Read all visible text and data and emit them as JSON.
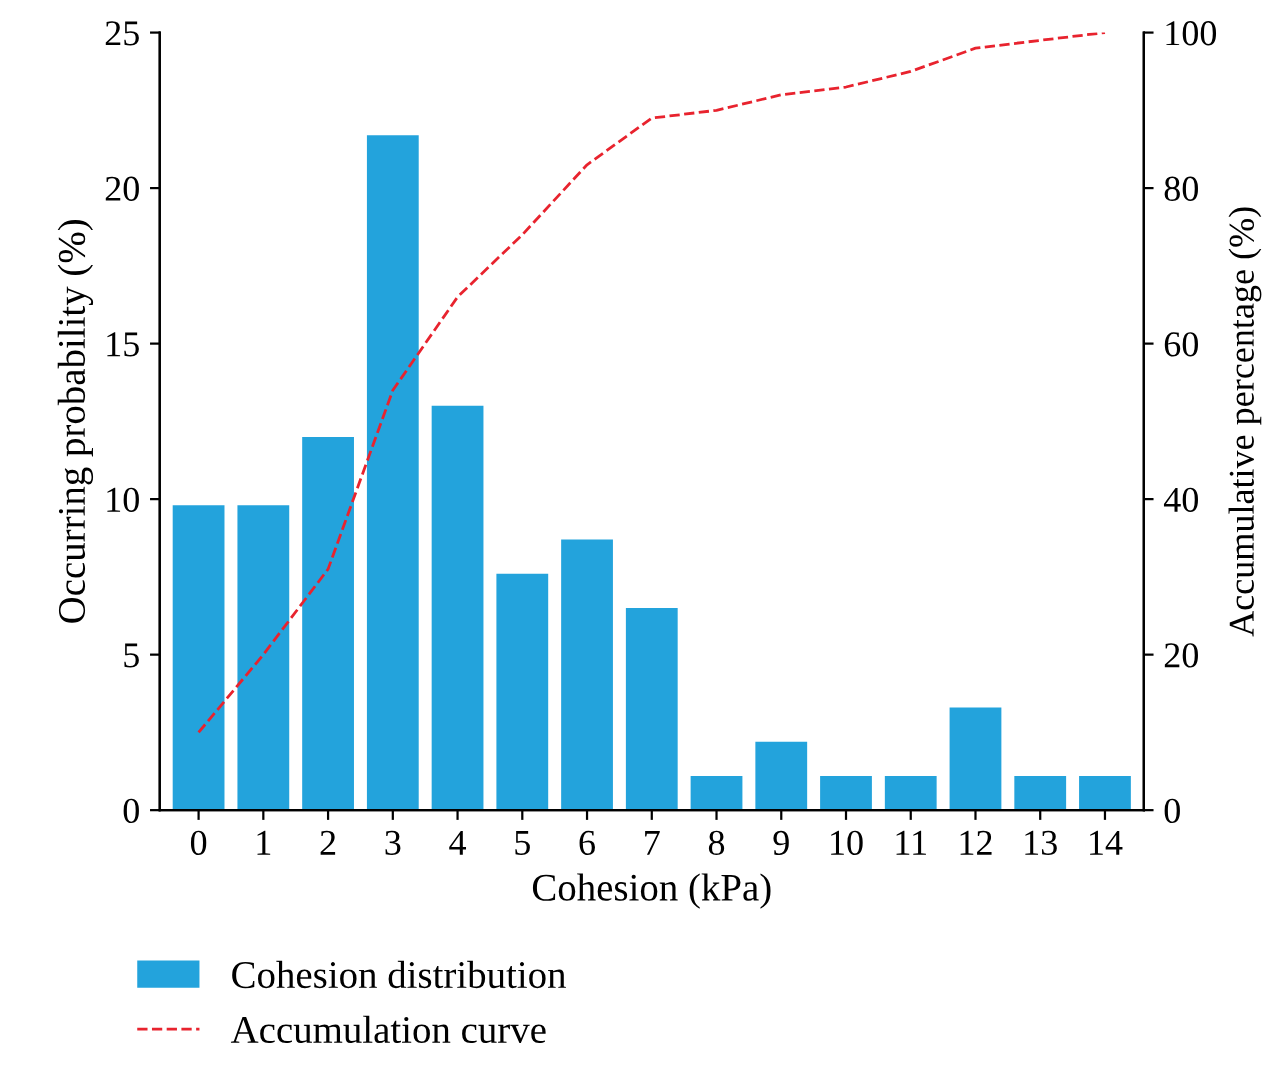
{
  "chart_data": {
    "type": "bar",
    "xlabel": "Cohesion (kPa)",
    "ylabel": "Occurring probability (%)",
    "y2label": "Accumulative percentage (%)",
    "categories": [
      "0",
      "1",
      "2",
      "3",
      "4",
      "5",
      "6",
      "7",
      "8",
      "9",
      "10",
      "11",
      "12",
      "13",
      "14"
    ],
    "series": [
      {
        "name": "Cohesion distribution",
        "color": "#23a3dc",
        "values": [
          9.8,
          9.8,
          12.0,
          21.7,
          13.0,
          7.6,
          8.7,
          6.5,
          1.1,
          2.2,
          1.1,
          1.1,
          3.3,
          1.1,
          1.1
        ]
      },
      {
        "name": "Accumulation curve",
        "type": "line",
        "axis": "y2",
        "line_style": "dashed",
        "color": "#e8232e",
        "values": [
          10,
          20,
          31,
          54,
          66,
          74,
          83,
          89,
          90,
          92,
          93,
          95,
          98,
          99,
          100
        ]
      }
    ],
    "ylim": [
      0,
      25
    ],
    "yticks": [
      0,
      5,
      10,
      15,
      20,
      25
    ],
    "y2lim": [
      0,
      100
    ],
    "y2ticks": [
      0,
      20,
      40,
      60,
      80,
      100
    ],
    "legend": "bottom",
    "grid": false
  }
}
